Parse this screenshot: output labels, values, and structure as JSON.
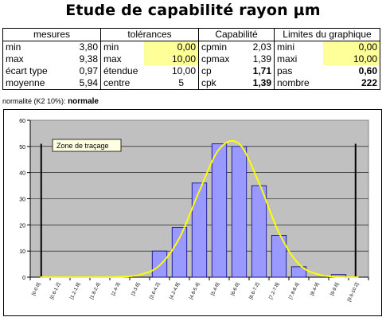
{
  "title": "Etude de capabilité rayon µm",
  "table": {
    "headers": [
      "mesures",
      "tolérances",
      "Capabilité",
      "Limites du graphique"
    ],
    "rows": [
      [
        "min",
        "3,80",
        "min",
        "0,00",
        "cpmin",
        "2,03",
        "mini",
        "0,00"
      ],
      [
        "max",
        "9,38",
        "max",
        "10,00",
        "cpmax",
        "1,39",
        "maxi",
        "10,00"
      ],
      [
        "écart type",
        "0,97",
        "étendue",
        "10,00",
        "cp",
        "1,71",
        "pas",
        "0,60"
      ],
      [
        "moyenne",
        "5,94",
        "centre",
        "5",
        "cpk",
        "1,39",
        "nombre",
        "222"
      ]
    ]
  },
  "normality": {
    "label": "normalité (K2 10%):",
    "value": "normale"
  },
  "chart_data": {
    "type": "bar",
    "categories": [
      "[0-0.6]",
      "[0.6-1.2]",
      "[1.2-1.8]",
      "[1.8-2.4]",
      "[2.4-3]",
      "[3-3.6]",
      "[3.6-4.2]",
      "[4.2-4.8]",
      "[4.8-5.4]",
      "[5.4-6]",
      "[6-6.6]",
      "[6.6-7.2]",
      "[7.2-7.8]",
      "[7.8-8.4]",
      "[8.4-9]",
      "[9-9.6]",
      "[9.6-10.2]"
    ],
    "values": [
      0,
      0,
      0,
      0,
      0,
      0,
      10,
      19,
      36,
      51,
      50,
      35,
      16,
      4,
      0,
      1,
      0
    ],
    "curve": [
      0,
      0,
      0,
      0,
      0.1,
      0.9,
      4.5,
      15,
      33,
      49,
      51,
      36,
      17,
      5,
      1,
      0.1,
      0
    ],
    "ylim": [
      0,
      60
    ],
    "yticks": [
      "0",
      "10",
      "20",
      "30",
      "40",
      "50",
      "60"
    ],
    "annotation": "Zone de traçage",
    "colors": {
      "bar": "#9999ff",
      "bar_edge": "#000080",
      "curve": "#ffff00",
      "plot_bg": "#c0c0c0"
    }
  }
}
